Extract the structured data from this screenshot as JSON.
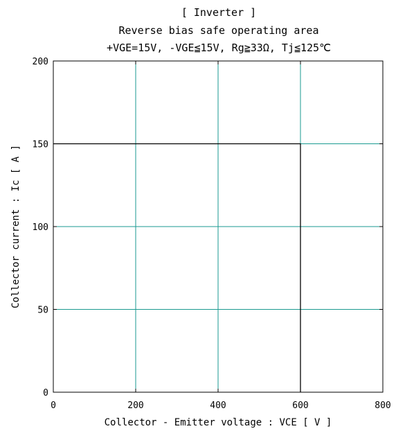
{
  "chart_data": {
    "type": "line",
    "title": "[ Inverter ]",
    "subtitle": "Reverse bias safe operating area",
    "conditions": "+VGE=15V, -VGE≦15V, Rg≧33Ω, Tj≦125℃",
    "xlabel": "Collector - Emitter voltage  :  VCE  [ V ]",
    "ylabel": "Collector current  :  Ic  [ A ]",
    "xlim": [
      0,
      800
    ],
    "ylim": [
      0,
      200
    ],
    "xticks": [
      0,
      200,
      400,
      600,
      800
    ],
    "yticks": [
      0,
      50,
      100,
      150,
      200
    ],
    "xtick_labels": [
      "0",
      "200",
      "400",
      "600",
      "800"
    ],
    "ytick_labels": [
      "0",
      "50",
      "100",
      "150",
      "200"
    ],
    "grid": true,
    "grid_color": "#1a9a90",
    "boundary_color": "#000000",
    "series": [
      {
        "x": [
          0,
          600,
          600
        ],
        "y": [
          150,
          150,
          0
        ]
      }
    ]
  }
}
